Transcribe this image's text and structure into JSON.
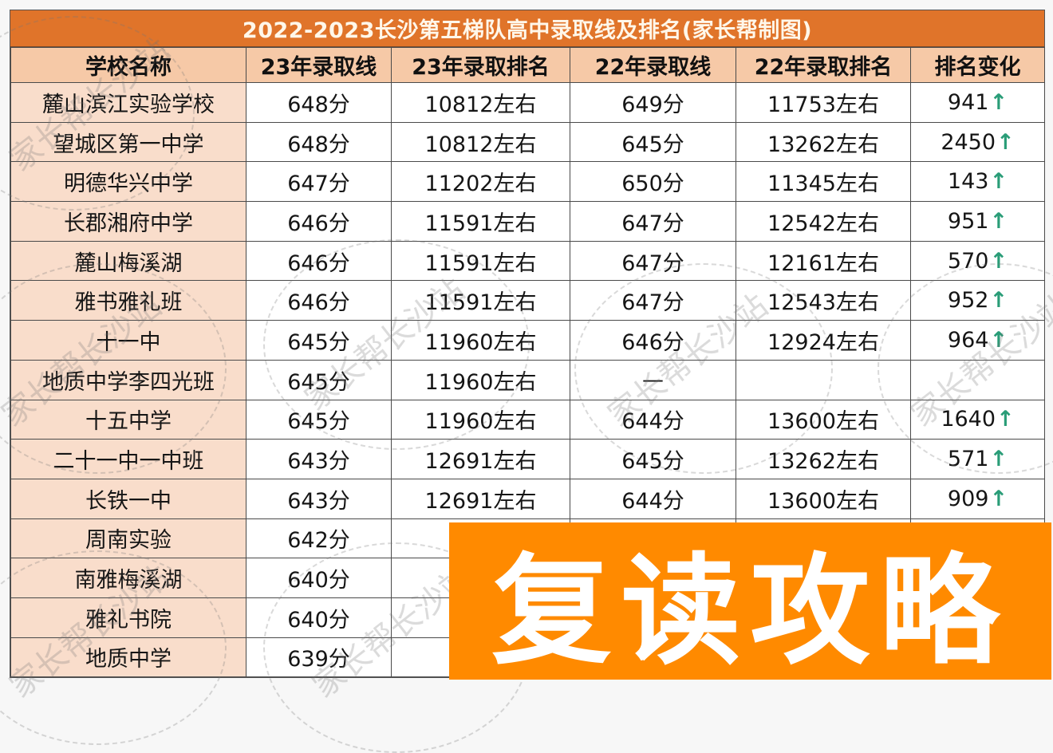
{
  "title": "2022-2023长沙第五梯队高中录取线及排名(家长帮制图)",
  "columns": [
    "学校名称",
    "23年录取线",
    "23年录取排名",
    "22年录取线",
    "22年录取排名",
    "排名变化"
  ],
  "rows": [
    {
      "school": "麓山滨江实验学校",
      "score23": "648分",
      "rank23": "10812左右",
      "score22": "649分",
      "rank22": "11753左右",
      "change": "941",
      "arrow": "↑"
    },
    {
      "school": "望城区第一中学",
      "score23": "648分",
      "rank23": "10812左右",
      "score22": "645分",
      "rank22": "13262左右",
      "change": "2450",
      "arrow": "↑"
    },
    {
      "school": "明德华兴中学",
      "score23": "647分",
      "rank23": "11202左右",
      "score22": "650分",
      "rank22": "11345左右",
      "change": "143",
      "arrow": "↑"
    },
    {
      "school": "长郡湘府中学",
      "score23": "646分",
      "rank23": "11591左右",
      "score22": "647分",
      "rank22": "12542左右",
      "change": "951",
      "arrow": "↑"
    },
    {
      "school": "麓山梅溪湖",
      "score23": "646分",
      "rank23": "11591左右",
      "score22": "647分",
      "rank22": "12161左右",
      "change": "570",
      "arrow": "↑"
    },
    {
      "school": "雅书雅礼班",
      "score23": "646分",
      "rank23": "11591左右",
      "score22": "647分",
      "rank22": "12543左右",
      "change": "952",
      "arrow": "↑"
    },
    {
      "school": "十一中",
      "score23": "645分",
      "rank23": "11960左右",
      "score22": "646分",
      "rank22": "12924左右",
      "change": "964",
      "arrow": "↑"
    },
    {
      "school": "地质中学李四光班",
      "score23": "645分",
      "rank23": "11960左右",
      "score22": "—",
      "rank22": "",
      "change": "",
      "arrow": ""
    },
    {
      "school": "十五中学",
      "score23": "645分",
      "rank23": "11960左右",
      "score22": "644分",
      "rank22": "13600左右",
      "change": "1640",
      "arrow": "↑"
    },
    {
      "school": "二十一中一中班",
      "score23": "643分",
      "rank23": "12691左右",
      "score22": "645分",
      "rank22": "13262左右",
      "change": "571",
      "arrow": "↑"
    },
    {
      "school": "长铁一中",
      "score23": "643分",
      "rank23": "12691左右",
      "score22": "644分",
      "rank22": "13600左右",
      "change": "909",
      "arrow": "↑"
    },
    {
      "school": "周南实验",
      "score23": "642分",
      "rank23": "13",
      "score22": "",
      "rank22": "",
      "change": "",
      "arrow": ""
    },
    {
      "school": "南雅梅溪湖",
      "score23": "640分",
      "rank23": "13",
      "score22": "",
      "rank22": "",
      "change": "",
      "arrow": ""
    },
    {
      "school": "雅礼书院",
      "score23": "640分",
      "rank23": "13",
      "score22": "",
      "rank22": "",
      "change": "",
      "arrow": ""
    },
    {
      "school": "地质中学",
      "score23": "639分",
      "rank23": "14",
      "score22": "",
      "rank22": "",
      "change": "",
      "arrow": ""
    }
  ],
  "overlay": {
    "text": "复读攻略"
  },
  "watermark": {
    "text": "家长帮长沙站"
  },
  "colors": {
    "title_bg": "#e0742a",
    "header_bg": "#f6c9a7",
    "school_col_bg": "#f9ddcb",
    "arrow": "#2a9d78",
    "overlay_bg": "#ff8a00"
  }
}
